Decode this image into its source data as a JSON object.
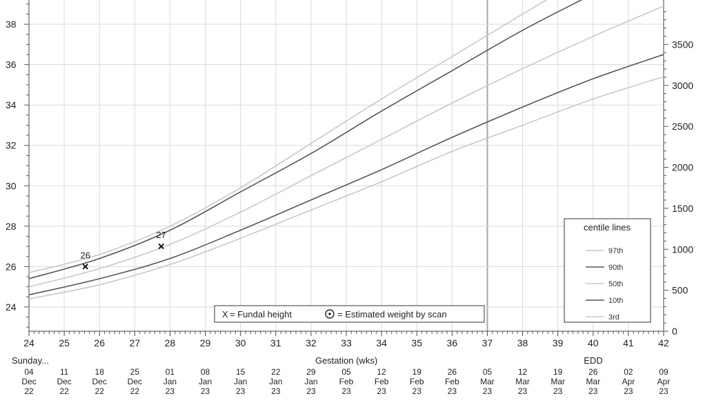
{
  "chart_data": {
    "type": "line",
    "xlabel": "Gestation (wks)",
    "xlim": [
      24,
      42
    ],
    "ylim_left": [
      22.8,
      39.2
    ],
    "ylim_right": [
      0,
      4000
    ],
    "x_ticks": [
      24,
      25,
      26,
      27,
      28,
      29,
      30,
      31,
      32,
      33,
      34,
      35,
      36,
      37,
      38,
      39,
      40,
      41,
      42
    ],
    "y_left_ticks": [
      24,
      26,
      28,
      30,
      32,
      34,
      36,
      38
    ],
    "y_right_ticks": [
      0,
      500,
      1000,
      1500,
      2000,
      2500,
      3000,
      3500
    ],
    "x_tick_labels": [
      "24",
      "25",
      "26",
      "27",
      "28",
      "29",
      "30",
      "31",
      "32",
      "33",
      "34",
      "35",
      "36",
      "37",
      "38",
      "39",
      "40",
      "41",
      "42"
    ],
    "y_left_tick_labels": [
      "24",
      "26",
      "28",
      "30",
      "32",
      "34",
      "36",
      "38"
    ],
    "y_right_tick_labels": [
      "0",
      "500",
      "1000",
      "1500",
      "2000",
      "2500",
      "3000",
      "3500"
    ],
    "current_week_marker": 37,
    "start_day_label": "Sunday...",
    "edd_label": "EDD",
    "dates": [
      {
        "week": 24,
        "day": "04",
        "month": "Dec",
        "year": "22"
      },
      {
        "week": 25,
        "day": "11",
        "month": "Dec",
        "year": "22"
      },
      {
        "week": 26,
        "day": "18",
        "month": "Dec",
        "year": "22"
      },
      {
        "week": 27,
        "day": "25",
        "month": "Dec",
        "year": "22"
      },
      {
        "week": 28,
        "day": "01",
        "month": "Jan",
        "year": "23"
      },
      {
        "week": 29,
        "day": "08",
        "month": "Jan",
        "year": "23"
      },
      {
        "week": 30,
        "day": "15",
        "month": "Jan",
        "year": "23"
      },
      {
        "week": 31,
        "day": "22",
        "month": "Jan",
        "year": "23"
      },
      {
        "week": 32,
        "day": "29",
        "month": "Jan",
        "year": "23"
      },
      {
        "week": 33,
        "day": "05",
        "month": "Feb",
        "year": "23"
      },
      {
        "week": 34,
        "day": "12",
        "month": "Feb",
        "year": "23"
      },
      {
        "week": 35,
        "day": "19",
        "month": "Feb",
        "year": "23"
      },
      {
        "week": 36,
        "day": "26",
        "month": "Feb",
        "year": "23"
      },
      {
        "week": 37,
        "day": "05",
        "month": "Mar",
        "year": "23"
      },
      {
        "week": 38,
        "day": "12",
        "month": "Mar",
        "year": "23"
      },
      {
        "week": 39,
        "day": "19",
        "month": "Mar",
        "year": "23"
      },
      {
        "week": 40,
        "day": "26",
        "month": "Mar",
        "year": "23"
      },
      {
        "week": 41,
        "day": "02",
        "month": "Apr",
        "year": "23"
      },
      {
        "week": 42,
        "day": "09",
        "month": "Apr",
        "year": "23"
      }
    ],
    "series": [
      {
        "name": "97th",
        "color": "#c8c8c8",
        "width": 1.6,
        "x": [
          24,
          26,
          28,
          30,
          32,
          34,
          36,
          38,
          40,
          42
        ],
        "y": [
          25.7,
          26.6,
          28.0,
          29.9,
          32.1,
          34.3,
          36.4,
          38.5,
          40.6,
          42.6
        ]
      },
      {
        "name": "90th",
        "color": "#555555",
        "width": 1.6,
        "x": [
          24,
          26,
          28,
          30,
          32,
          34,
          36,
          38,
          40,
          42
        ],
        "y": [
          25.4,
          26.4,
          27.8,
          29.7,
          31.6,
          33.7,
          35.7,
          37.7,
          39.5,
          41.3
        ]
      },
      {
        "name": "50th",
        "color": "#c8c8c8",
        "width": 1.6,
        "x": [
          24,
          26,
          28,
          30,
          32,
          34,
          36,
          38,
          40,
          42
        ],
        "y": [
          25.0,
          25.9,
          27.1,
          28.7,
          30.5,
          32.3,
          34.1,
          35.8,
          37.4,
          38.9
        ]
      },
      {
        "name": "10th",
        "color": "#555555",
        "width": 1.6,
        "x": [
          24,
          26,
          28,
          30,
          32,
          34,
          36,
          38,
          40,
          42
        ],
        "y": [
          24.6,
          25.4,
          26.4,
          27.8,
          29.3,
          30.8,
          32.4,
          33.9,
          35.3,
          36.5
        ]
      },
      {
        "name": "3rd",
        "color": "#c8c8c8",
        "width": 1.6,
        "x": [
          24,
          26,
          28,
          30,
          32,
          34,
          36,
          38,
          40,
          42
        ],
        "y": [
          24.4,
          25.1,
          26.1,
          27.4,
          28.8,
          30.2,
          31.7,
          33.0,
          34.3,
          35.4
        ]
      }
    ],
    "measurements": [
      {
        "label": "26",
        "x": 25.6,
        "y": 26.0
      },
      {
        "label": "27",
        "x": 27.75,
        "y": 27.0
      }
    ],
    "legend": {
      "title": "centile lines",
      "entries": [
        {
          "label": "97th",
          "color": "#c8c8c8"
        },
        {
          "label": "90th",
          "color": "#555555"
        },
        {
          "label": "50th",
          "color": "#c8c8c8"
        },
        {
          "label": "10th",
          "color": "#555555"
        },
        {
          "label": "3rd",
          "color": "#c8c8c8"
        }
      ],
      "placement": "bottom-right"
    },
    "key": {
      "fundal_symbol": "X",
      "fundal_text": "= Fundal height",
      "weight_text": "= Estimated weight by scan"
    }
  }
}
